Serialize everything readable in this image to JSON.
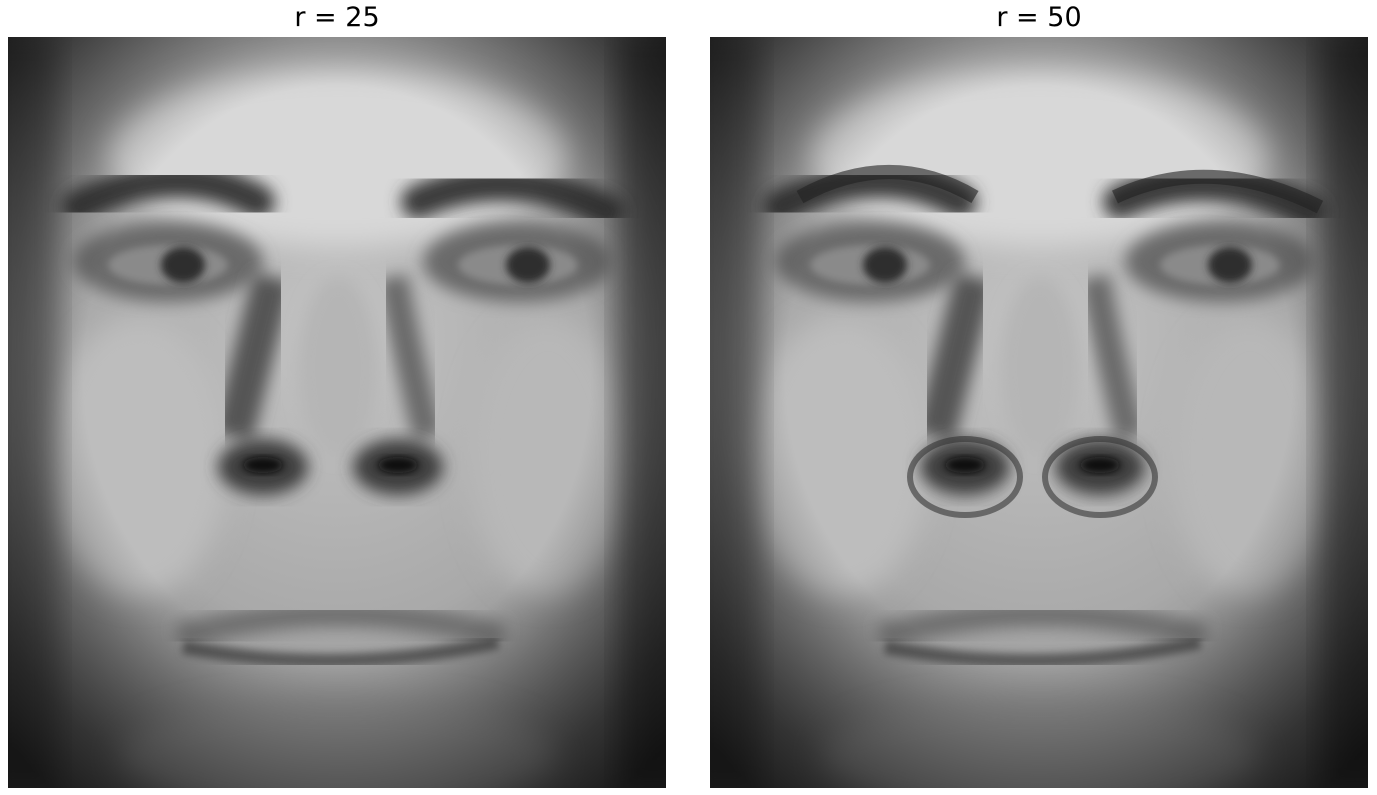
{
  "panels": [
    {
      "title": "r = 25",
      "image": "grayscale-face-reconstruction",
      "colormap": "gray"
    },
    {
      "title": "r = 50",
      "image": "grayscale-face-reconstruction",
      "colormap": "gray"
    }
  ],
  "colors": {
    "background": "#ffffff",
    "title": "#000000"
  }
}
